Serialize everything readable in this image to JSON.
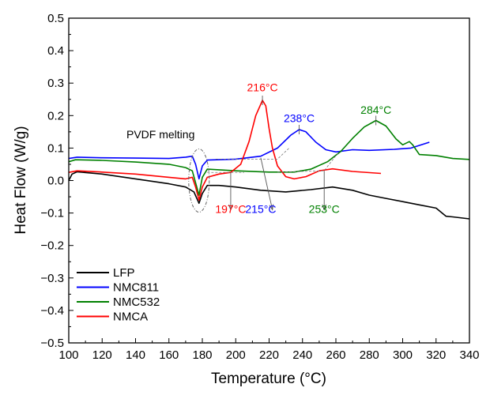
{
  "chart_data": {
    "type": "line",
    "xlabel": "Temperature (°C)",
    "ylabel": "Heat Flow (W/g)",
    "xlim": [
      100,
      340
    ],
    "ylim": [
      -0.5,
      0.5
    ],
    "xticks": [
      100,
      120,
      140,
      160,
      180,
      200,
      220,
      240,
      260,
      280,
      300,
      320,
      340
    ],
    "yticks": [
      -0.5,
      -0.4,
      -0.3,
      -0.2,
      -0.1,
      0.0,
      0.1,
      0.2,
      0.3,
      0.4,
      0.5
    ],
    "ytick_labels": [
      "−0.5",
      "−0.4",
      "−0.3",
      "−0.2",
      "−0.1",
      "0.0",
      "0.1",
      "0.2",
      "0.3",
      "0.4",
      "0.5"
    ],
    "grid": false,
    "legend_position": "bottom-left",
    "series": [
      {
        "name": "LFP",
        "color": "#000000",
        "points": [
          [
            100,
            0.0
          ],
          [
            102,
            0.02
          ],
          [
            105,
            0.027
          ],
          [
            120,
            0.02
          ],
          [
            140,
            0.005
          ],
          [
            160,
            -0.01
          ],
          [
            170,
            -0.02
          ],
          [
            175,
            -0.035
          ],
          [
            178,
            -0.07
          ],
          [
            180,
            -0.04
          ],
          [
            183,
            -0.015
          ],
          [
            190,
            -0.015
          ],
          [
            200,
            -0.02
          ],
          [
            215,
            -0.03
          ],
          [
            230,
            -0.035
          ],
          [
            245,
            -0.028
          ],
          [
            258,
            -0.02
          ],
          [
            270,
            -0.03
          ],
          [
            280,
            -0.045
          ],
          [
            290,
            -0.055
          ],
          [
            300,
            -0.065
          ],
          [
            310,
            -0.075
          ],
          [
            320,
            -0.085
          ],
          [
            326,
            -0.11
          ],
          [
            330,
            -0.112
          ],
          [
            340,
            -0.118
          ]
        ]
      },
      {
        "name": "NMC811",
        "color": "#0000ff",
        "points": [
          [
            100,
            0.068
          ],
          [
            105,
            0.072
          ],
          [
            120,
            0.07
          ],
          [
            140,
            0.069
          ],
          [
            160,
            0.068
          ],
          [
            170,
            0.072
          ],
          [
            174,
            0.075
          ],
          [
            176,
            0.05
          ],
          [
            178,
            0.005
          ],
          [
            180,
            0.045
          ],
          [
            183,
            0.063
          ],
          [
            200,
            0.066
          ],
          [
            215,
            0.075
          ],
          [
            225,
            0.1
          ],
          [
            233,
            0.14
          ],
          [
            238,
            0.157
          ],
          [
            242,
            0.15
          ],
          [
            248,
            0.118
          ],
          [
            254,
            0.095
          ],
          [
            260,
            0.088
          ],
          [
            270,
            0.095
          ],
          [
            280,
            0.093
          ],
          [
            295,
            0.096
          ],
          [
            305,
            0.1
          ],
          [
            316,
            0.118
          ]
        ]
      },
      {
        "name": "NMC532",
        "color": "#008000",
        "points": [
          [
            100,
            0.058
          ],
          [
            104,
            0.064
          ],
          [
            120,
            0.062
          ],
          [
            140,
            0.057
          ],
          [
            160,
            0.05
          ],
          [
            170,
            0.04
          ],
          [
            174,
            0.03
          ],
          [
            178,
            -0.045
          ],
          [
            180,
            0.01
          ],
          [
            183,
            0.035
          ],
          [
            200,
            0.03
          ],
          [
            220,
            0.026
          ],
          [
            235,
            0.026
          ],
          [
            245,
            0.035
          ],
          [
            255,
            0.058
          ],
          [
            263,
            0.09
          ],
          [
            270,
            0.13
          ],
          [
            277,
            0.165
          ],
          [
            284,
            0.185
          ],
          [
            290,
            0.168
          ],
          [
            296,
            0.128
          ],
          [
            300,
            0.11
          ],
          [
            304,
            0.12
          ],
          [
            306,
            0.11
          ],
          [
            310,
            0.08
          ],
          [
            320,
            0.077
          ],
          [
            330,
            0.068
          ],
          [
            340,
            0.065
          ]
        ]
      },
      {
        "name": "NMCA",
        "color": "#ff0000",
        "points": [
          [
            100,
            0.025
          ],
          [
            105,
            0.03
          ],
          [
            120,
            0.026
          ],
          [
            140,
            0.02
          ],
          [
            160,
            0.01
          ],
          [
            170,
            0.005
          ],
          [
            174,
            0.01
          ],
          [
            176,
            -0.02
          ],
          [
            178,
            -0.06
          ],
          [
            180,
            -0.02
          ],
          [
            183,
            0.01
          ],
          [
            190,
            0.02
          ],
          [
            197,
            0.025
          ],
          [
            203,
            0.05
          ],
          [
            208,
            0.12
          ],
          [
            212,
            0.2
          ],
          [
            216,
            0.247
          ],
          [
            218,
            0.23
          ],
          [
            220,
            0.16
          ],
          [
            222,
            0.1
          ],
          [
            225,
            0.045
          ],
          [
            230,
            0.012
          ],
          [
            235,
            0.005
          ],
          [
            242,
            0.012
          ],
          [
            250,
            0.03
          ],
          [
            258,
            0.036
          ],
          [
            270,
            0.028
          ],
          [
            287,
            0.022
          ]
        ]
      }
    ],
    "annotations": [
      {
        "text": "PVDF melting",
        "color": "#000000",
        "x": 155,
        "y": 0.13
      },
      {
        "text": "216°C",
        "color": "#ff0000",
        "x": 216,
        "y": 0.275
      },
      {
        "text": "238°C",
        "color": "#0000ff",
        "x": 238,
        "y": 0.18
      },
      {
        "text": "284°C",
        "color": "#008000",
        "x": 284,
        "y": 0.205
      },
      {
        "text": "197°C",
        "color": "#ff0000",
        "x": 197,
        "y": -0.1
      },
      {
        "text": "215°C",
        "color": "#0000ff",
        "x": 215,
        "y": -0.1
      },
      {
        "text": "253°C",
        "color": "#008000",
        "x": 253,
        "y": -0.1
      }
    ]
  }
}
